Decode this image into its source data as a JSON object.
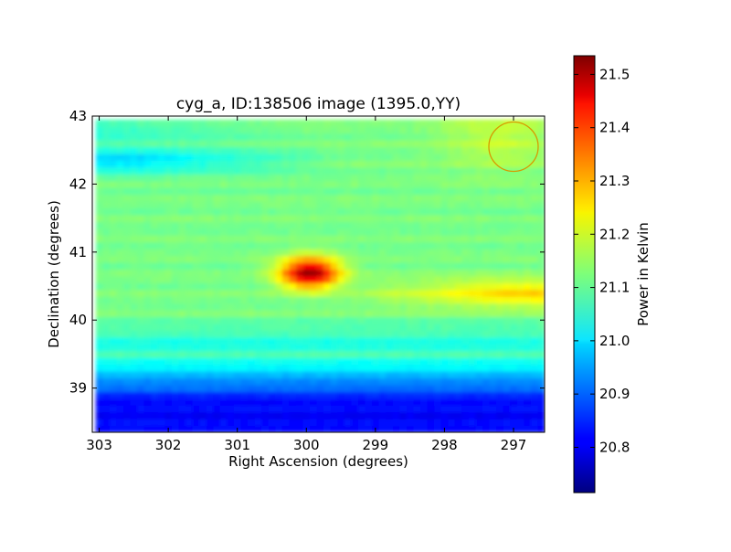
{
  "chart_data": {
    "type": "heatmap",
    "title": "cyg_a, ID:138506 image (1395.0,YY)",
    "xlabel": "Right Ascension (degrees)",
    "ylabel": "Declination (degrees)",
    "colorbar_label": "Power in Kelvin",
    "x_ticks": [
      "303",
      "302",
      "301",
      "300",
      "299",
      "298",
      "297"
    ],
    "x_tick_values": [
      303,
      302,
      301,
      300,
      299,
      298,
      297
    ],
    "y_ticks": [
      "39",
      "40",
      "41",
      "42",
      "43"
    ],
    "y_tick_values": [
      39,
      40,
      41,
      42,
      43
    ],
    "colorbar_ticks": [
      "20.8",
      "20.9",
      "21.0",
      "21.1",
      "21.2",
      "21.3",
      "21.4",
      "21.5"
    ],
    "colorbar_tick_values": [
      20.8,
      20.9,
      21.0,
      21.1,
      21.2,
      21.3,
      21.4,
      21.5
    ],
    "xlim": [
      303.1,
      296.55
    ],
    "ylim": [
      38.35,
      43.0
    ],
    "color_range": [
      20.715,
      21.535
    ],
    "colormap": "jet",
    "ra_dec_step": 0.1,
    "emission_features": [
      {
        "ra": 299.95,
        "dec": 40.7,
        "peak": 21.52,
        "note": "bright compact source"
      },
      {
        "ra": 297.0,
        "dec": 40.4,
        "peak": 21.28,
        "note": "extended ridge"
      }
    ],
    "background_level": 21.12,
    "marker": {
      "type": "circle",
      "ra": 297.0,
      "dec": 42.55,
      "color": "#d79a00"
    },
    "grid": false
  }
}
